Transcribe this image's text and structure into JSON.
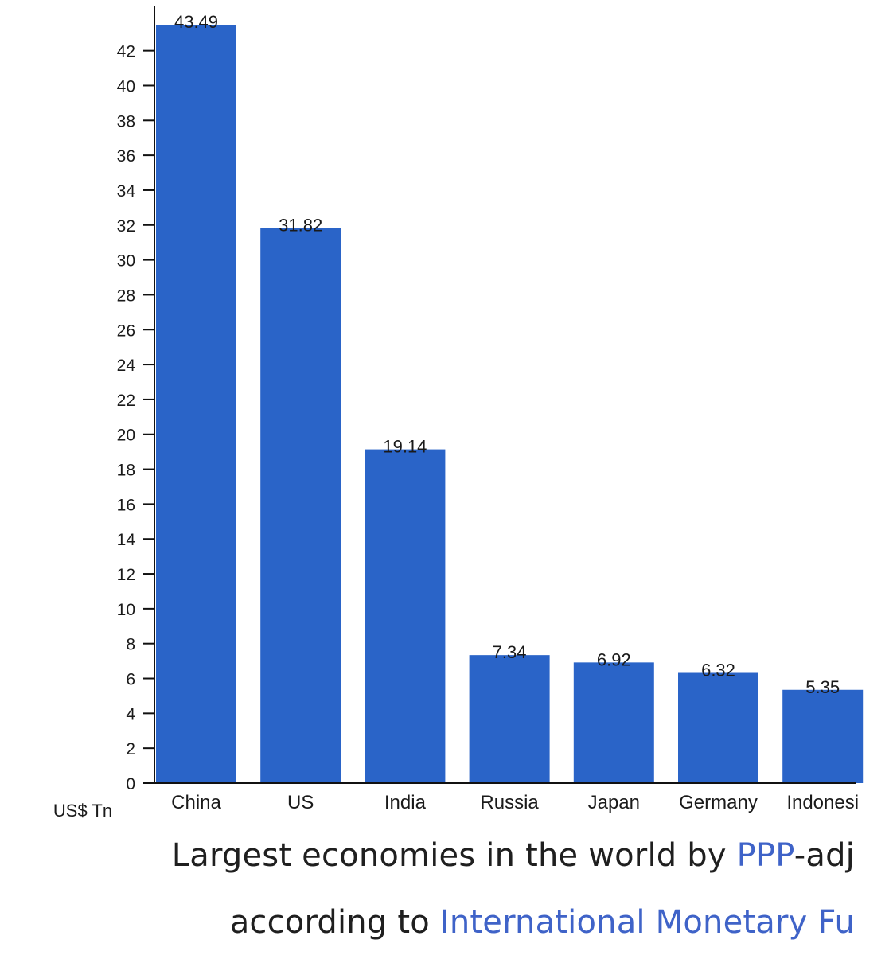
{
  "chart_data": {
    "type": "bar",
    "categories": [
      "China",
      "US",
      "India",
      "Russia",
      "Japan",
      "Germany",
      "Indonesi"
    ],
    "values": [
      43.49,
      31.82,
      19.14,
      7.34,
      6.92,
      6.32,
      5.35
    ],
    "value_labels": [
      "43.49",
      "31.82",
      "19.14",
      "7.34",
      "6.92",
      "6.32",
      "5.35"
    ],
    "yticks": [
      0,
      2,
      4,
      6,
      8,
      10,
      12,
      14,
      16,
      18,
      20,
      22,
      24,
      26,
      28,
      30,
      32,
      34,
      36,
      38,
      40,
      42
    ],
    "ylim": [
      0,
      43.49
    ],
    "yunit": "US$ Tn",
    "bar_color": "#2a64c8",
    "grid": false
  },
  "caption": {
    "line1_before": "Largest economies in the world by ",
    "line1_link": "PPP",
    "line1_after": "-adj",
    "line2_before": "according to ",
    "line2_link": "International Monetary Fu"
  },
  "colors": {
    "link": "#3f63c8",
    "text": "#1f1f1f"
  }
}
